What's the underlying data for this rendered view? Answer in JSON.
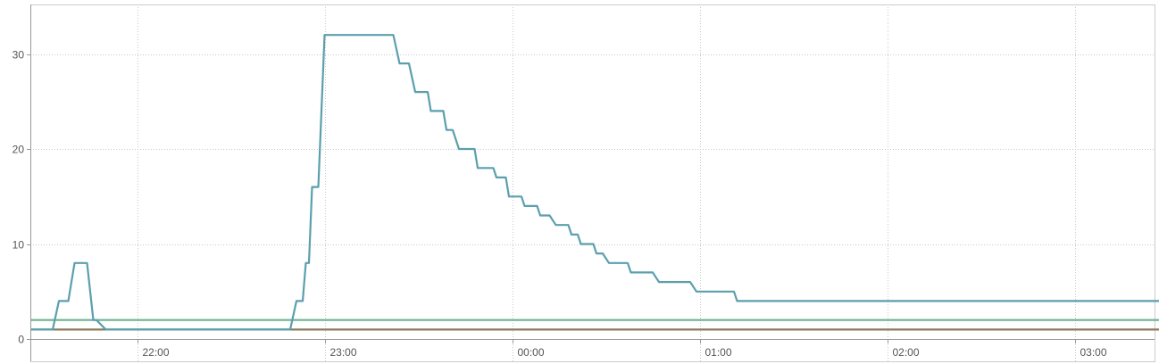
{
  "chart_data": {
    "type": "line",
    "title": "",
    "xlabel": "",
    "ylabel": "",
    "x_ticks": [
      "22:00",
      "23:00",
      "00:00",
      "01:00",
      "02:00",
      "03:00"
    ],
    "y_ticks": [
      0,
      10,
      20,
      30
    ],
    "xlim": [
      "21:26",
      "03:30"
    ],
    "ylim": [
      -2.5,
      35
    ],
    "grid": true,
    "legend": "none",
    "series": [
      {
        "color": "#5b9fad",
        "points": [
          [
            "21:26",
            1
          ],
          [
            "21:33",
            1
          ],
          [
            "21:35",
            4
          ],
          [
            "21:38",
            4
          ],
          [
            "21:40",
            8
          ],
          [
            "21:43",
            8
          ],
          [
            "21:44",
            8
          ],
          [
            "21:46",
            2
          ],
          [
            "21:47",
            2
          ],
          [
            "21:50",
            1
          ],
          [
            "22:49",
            1
          ],
          [
            "22:51",
            4
          ],
          [
            "22:53",
            4
          ],
          [
            "22:54",
            8
          ],
          [
            "22:55",
            8
          ],
          [
            "22:56",
            16
          ],
          [
            "22:58",
            16
          ],
          [
            "23:00",
            32
          ],
          [
            "23:22",
            32
          ],
          [
            "23:24",
            29
          ],
          [
            "23:27",
            29
          ],
          [
            "23:29",
            26
          ],
          [
            "23:33",
            26
          ],
          [
            "23:34",
            24
          ],
          [
            "23:38",
            24
          ],
          [
            "23:39",
            22
          ],
          [
            "23:41",
            22
          ],
          [
            "23:43",
            20
          ],
          [
            "23:48",
            20
          ],
          [
            "23:49",
            18
          ],
          [
            "23:54",
            18
          ],
          [
            "23:55",
            17
          ],
          [
            "23:58",
            17
          ],
          [
            "23:59",
            15
          ],
          [
            "00:03",
            15
          ],
          [
            "00:04",
            14
          ],
          [
            "00:08",
            14
          ],
          [
            "00:09",
            13
          ],
          [
            "00:12",
            13
          ],
          [
            "00:14",
            12
          ],
          [
            "00:18",
            12
          ],
          [
            "00:19",
            11
          ],
          [
            "00:21",
            11
          ],
          [
            "00:22",
            10
          ],
          [
            "00:26",
            10
          ],
          [
            "00:27",
            9
          ],
          [
            "00:29",
            9
          ],
          [
            "00:31",
            8
          ],
          [
            "00:37",
            8
          ],
          [
            "00:38",
            7
          ],
          [
            "00:45",
            7
          ],
          [
            "00:47",
            6
          ],
          [
            "00:57",
            6
          ],
          [
            "00:59",
            5
          ],
          [
            "01:11",
            5
          ],
          [
            "01:12",
            4
          ],
          [
            "03:30",
            4
          ]
        ]
      },
      {
        "color": "#6db38f",
        "points": [
          [
            "21:26",
            2
          ],
          [
            "03:30",
            2
          ]
        ]
      },
      {
        "color": "#8b7a5a",
        "points": [
          [
            "21:26",
            1
          ],
          [
            "03:30",
            1
          ]
        ]
      }
    ]
  }
}
